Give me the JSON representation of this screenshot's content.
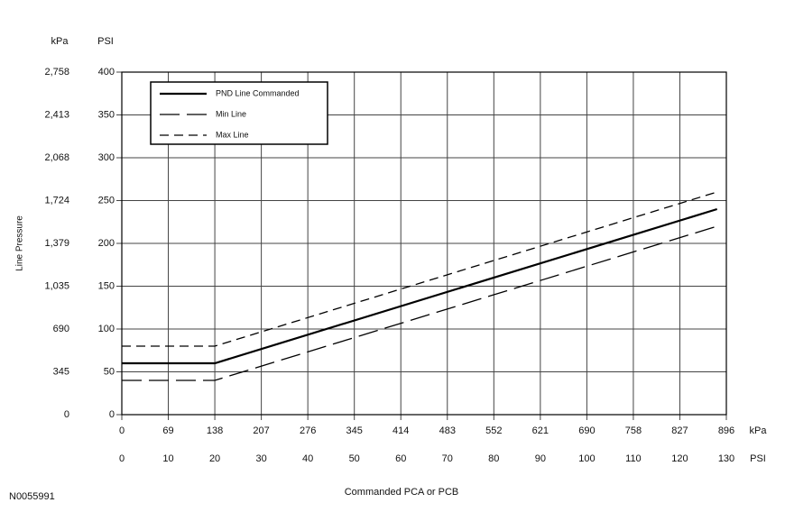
{
  "chart_data": {
    "type": "line",
    "id_label": "N0055991",
    "xlabel": "Commanded PCA or PCB",
    "ylabel": "Line Pressure",
    "x_unit": "PSI",
    "x2_unit": "kPa",
    "y_unit": "PSI",
    "y2_unit": "kPa",
    "xlim": [
      0,
      130
    ],
    "xticks": [
      0,
      10,
      20,
      30,
      40,
      50,
      60,
      70,
      80,
      90,
      100,
      110,
      120,
      130
    ],
    "x2ticks": [
      {
        "value": 0,
        "label": "0"
      },
      {
        "value": 10,
        "label": "69"
      },
      {
        "value": 20,
        "label": "138"
      },
      {
        "value": 30,
        "label": "207"
      },
      {
        "value": 40,
        "label": "276"
      },
      {
        "value": 50,
        "label": "345"
      },
      {
        "value": 60,
        "label": "414"
      },
      {
        "value": 70,
        "label": "483"
      },
      {
        "value": 80,
        "label": "552"
      },
      {
        "value": 90,
        "label": "621"
      },
      {
        "value": 100,
        "label": "690"
      },
      {
        "value": 110,
        "label": "758"
      },
      {
        "value": 120,
        "label": "827"
      },
      {
        "value": 130,
        "label": "896"
      }
    ],
    "ylim": [
      0,
      400
    ],
    "yticks": [
      0,
      50,
      100,
      150,
      200,
      250,
      300,
      350,
      400
    ],
    "y2ticks": [
      {
        "value": 0,
        "label": "0"
      },
      {
        "value": 50,
        "label": "345"
      },
      {
        "value": 100,
        "label": "690"
      },
      {
        "value": 150,
        "label": "1,035"
      },
      {
        "value": 200,
        "label": "1,379"
      },
      {
        "value": 250,
        "label": "1,724"
      },
      {
        "value": 300,
        "label": "2,068"
      },
      {
        "value": 350,
        "label": "2,413"
      },
      {
        "value": 400,
        "label": "2,758"
      }
    ],
    "grid": true,
    "legend": "top-left",
    "x": [
      0,
      20,
      128
    ],
    "series": [
      {
        "name": "PND Line Commanded",
        "color": "#000000",
        "style": "solid",
        "values": [
          60,
          60,
          240
        ]
      },
      {
        "name": "Min Line",
        "color": "#000000",
        "style": "long-dash",
        "values": [
          40,
          40,
          220
        ]
      },
      {
        "name": "Max Line",
        "color": "#000000",
        "style": "dash",
        "values": [
          80,
          80,
          260
        ]
      }
    ]
  }
}
